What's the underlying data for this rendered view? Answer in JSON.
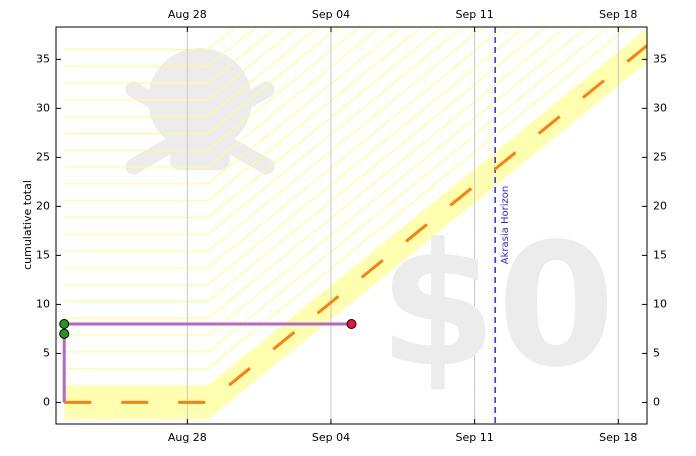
{
  "chart_data": {
    "type": "line",
    "y_label": "cumulative total",
    "watermark": "$0",
    "xlim": [
      -0.4,
      28.4
    ],
    "ylim": [
      -2.2,
      38.3
    ],
    "xticks": [
      {
        "value": 6,
        "label": "Aug 28"
      },
      {
        "value": 13,
        "label": "Sep 04"
      },
      {
        "value": 20,
        "label": "Sep 11"
      },
      {
        "value": 27,
        "label": "Sep 18"
      }
    ],
    "yticks": [
      0,
      5,
      10,
      15,
      20,
      25,
      30,
      35
    ],
    "grid": true,
    "road": {
      "color": "#ff7f0e",
      "band_color": "#ffffb0",
      "x": [
        0,
        7,
        28.4
      ],
      "values": [
        0,
        0,
        36.4
      ]
    },
    "series": [
      {
        "color": "#b864c8",
        "x": [
          0,
          0,
          14
        ],
        "values": [
          0,
          8,
          8
        ]
      }
    ],
    "points": {
      "x": [
        0,
        0,
        14
      ],
      "values": [
        7,
        8,
        8
      ],
      "colors": [
        "#1e9a1e",
        "#1e9a1e",
        "#ee1144"
      ]
    },
    "akrasia_horizon": {
      "x": 21,
      "label": "Akrasia Horizon",
      "color": "#2a2af0"
    }
  }
}
